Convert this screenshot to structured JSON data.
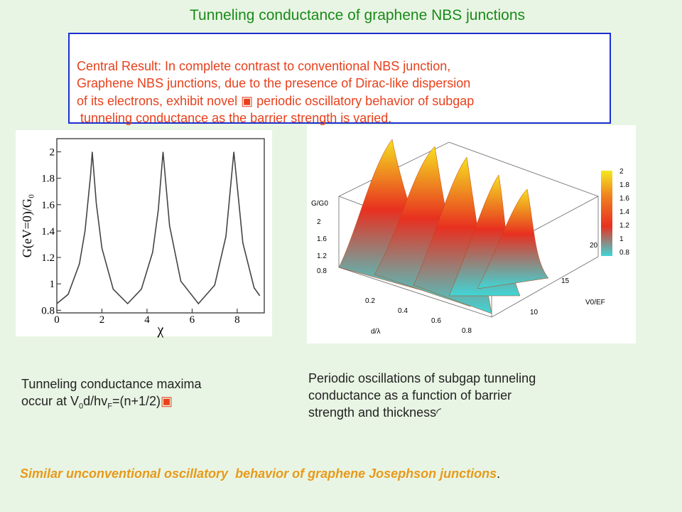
{
  "title": "Tunneling conductance of graphene NBS junctions",
  "central_result": {
    "lines": [
      "Central Result: In complete contrast to conventional NBS junction,",
      "Graphene NBS junctions, due to the presence of Dirac-like dispersion",
      "of its electrons, exhibit novel ▣ periodic oscillatory behavior of subgap",
      " tunneling conductance as the barrier strength is varied."
    ]
  },
  "chart_data": {
    "type": "line",
    "x_label": "χ",
    "y_label": "G(eV=0)/G₀",
    "x": [
      0,
      0.5,
      1,
      1.25,
      1.5,
      1.57,
      1.75,
      2,
      2.5,
      3.14,
      3.75,
      4.25,
      4.5,
      4.71,
      5,
      5.5,
      6.28,
      7,
      7.5,
      7.85,
      8.25,
      8.75,
      9
    ],
    "series": [
      {
        "color": "#444444",
        "values": [
          0.85,
          0.92,
          1.15,
          1.4,
          1.83,
          2.0,
          1.61,
          1.27,
          0.96,
          0.85,
          0.96,
          1.24,
          1.56,
          2.0,
          1.44,
          1.02,
          0.85,
          0.99,
          1.36,
          2.0,
          1.31,
          0.97,
          0.91
        ]
      }
    ],
    "xlim": [
      0,
      9.2
    ],
    "ylim": [
      0.78,
      2.1
    ],
    "xticks": [
      0,
      2,
      4,
      6,
      8
    ],
    "yticks": [
      0.8,
      1,
      1.2,
      1.4,
      1.6,
      1.8,
      2
    ]
  },
  "surface_plot": {
    "z_label": "G/G0",
    "x_label": "d/λ",
    "y_label": "V0/EF",
    "z_ticks": [
      "0.8",
      "1.2",
      "1.6",
      "2"
    ],
    "x_ticks": [
      "0.2",
      "0.4",
      "0.6",
      "0.8"
    ],
    "y_ticks": [
      "10",
      "15",
      "20"
    ],
    "colorbar_ticks": [
      "2",
      "1.8",
      "1.6",
      "1.4",
      "1.2",
      "1",
      "0.8"
    ]
  },
  "left_caption": {
    "line1": "Tunneling conductance maxima",
    "line2_parts": [
      "occur at V",
      "0",
      "d/hv",
      "F",
      "=(n+1/2)",
      "▣"
    ]
  },
  "right_caption": {
    "lines": [
      "Periodic oscillations of subgap tunneling",
      "conductance as a function of barrier",
      "strength and thickness"
    ],
    "symbol": "◜"
  },
  "footer": {
    "text": "Similar unconventional oscillatory  behavior of graphene Josephson junctions",
    "period": "."
  }
}
